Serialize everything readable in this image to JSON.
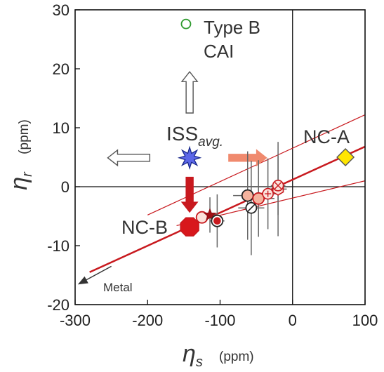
{
  "chart_data": {
    "type": "scatter",
    "title": "",
    "xlabel": "η",
    "xlabel_sub": "s",
    "xlabel_unit": "(ppm)",
    "ylabel": "η",
    "ylabel_sub": "r",
    "ylabel_unit": "(ppm)",
    "xlim": [
      -300,
      100
    ],
    "ylim": [
      -20,
      30
    ],
    "xticks": [
      -300,
      -200,
      -100,
      0,
      100
    ],
    "xtick_labels": [
      "-300",
      "-200",
      "-100",
      "0",
      "100"
    ],
    "yticks": [
      -20,
      -10,
      0,
      10,
      20,
      30
    ],
    "ytick_labels": [
      "-20",
      "-10",
      "0",
      "10",
      "20",
      "30"
    ],
    "grid": false,
    "zero_lines": true,
    "regression_lines": [
      {
        "name": "fit",
        "x": [
          -280,
          100
        ],
        "y": [
          -14.5,
          6.8
        ],
        "color": "#c8191e",
        "width": 2.5
      },
      {
        "name": "upper",
        "x": [
          -200,
          100
        ],
        "y": [
          -4.8,
          12.2
        ],
        "color": "#c8191e",
        "width": 1.2
      },
      {
        "name": "lower",
        "x": [
          -160,
          100
        ],
        "y": [
          -6.6,
          1.0
        ],
        "color": "#c8191e",
        "width": 1.2
      }
    ],
    "points": [
      {
        "id": "nc-b",
        "x": -142,
        "y": -6.8,
        "marker": "octagon",
        "fill": "#d8171c",
        "stroke": "#c8191e",
        "xerr": 0,
        "yerr": 0
      },
      {
        "id": "p2",
        "x": -125,
        "y": -5.2,
        "marker": "circle",
        "fill": "#fbe3dc",
        "stroke": "#c8191e",
        "xerr": 0,
        "yerr": 0
      },
      {
        "id": "p3",
        "x": -114,
        "y": -4.8,
        "marker": "star",
        "fill": "#a11016",
        "stroke": "#8a0d12",
        "xerr": 8,
        "yerr": 3
      },
      {
        "id": "p4",
        "x": -104,
        "y": -5.8,
        "marker": "double-circle",
        "fill": "#c8191e",
        "stroke": "#222222",
        "xerr": 10,
        "yerr": 4.5
      },
      {
        "id": "p5",
        "x": -62,
        "y": -1.5,
        "marker": "circle",
        "fill": "#f4b39e",
        "stroke": "#222222",
        "xerr": 20,
        "yerr": 7.5
      },
      {
        "id": "p6",
        "x": -57,
        "y": -3.6,
        "marker": "slash-circle",
        "fill": "#ffffff",
        "stroke": "#222222",
        "xerr": 18,
        "yerr": 8
      },
      {
        "id": "p7",
        "x": -47,
        "y": -2.0,
        "marker": "circle",
        "fill": "#f4b39e",
        "stroke": "#c8191e",
        "xerr": 22,
        "yerr": 6.5
      },
      {
        "id": "p8",
        "x": -34,
        "y": -1.2,
        "marker": "plus-circle",
        "fill": "#fbe3dc",
        "stroke": "#c8191e",
        "xerr": 15,
        "yerr": 6
      },
      {
        "id": "p9",
        "x": -20,
        "y": -0.4,
        "marker": "hexagon",
        "fill": "#fbe3dc",
        "stroke": "#c8191e",
        "xerr": 12,
        "yerr": 8
      },
      {
        "id": "p10",
        "x": -20,
        "y": 0.2,
        "marker": "x-circle",
        "fill": "#fbe3dc",
        "stroke": "#c8191e",
        "xerr": 10,
        "yerr": 5
      },
      {
        "id": "iss",
        "x": -142,
        "y": 4.9,
        "marker": "star8",
        "fill": "#5b66e8",
        "stroke": "#1a2a8c",
        "xerr": 0,
        "yerr": 0
      },
      {
        "id": "nc-a",
        "x": 73,
        "y": 5.0,
        "marker": "diamond",
        "fill": "#ffe600",
        "stroke": "#555555",
        "xerr": 0,
        "yerr": 0
      },
      {
        "id": "cai",
        "x": -147,
        "y": 27.6,
        "marker": "circle-open",
        "fill": "none",
        "stroke": "#2e9a2e",
        "xerr": 0,
        "yerr": 0
      }
    ],
    "annotations": {
      "nc_a": "NC-A",
      "nc_b": "NC-B",
      "iss_main": "ISS",
      "iss_sub": "avg.",
      "legend_line1": "Type B",
      "legend_line2": "CAI",
      "metal": "Metal"
    },
    "arrows": [
      {
        "id": "up",
        "from": [
          -142,
          12.5
        ],
        "to": [
          -142,
          19.5
        ],
        "style": "outline",
        "color": "#555555"
      },
      {
        "id": "left",
        "from": [
          -197,
          4.9
        ],
        "to": [
          -255,
          4.9
        ],
        "style": "outline",
        "color": "#555555"
      },
      {
        "id": "right",
        "from": [
          -88,
          4.9
        ],
        "to": [
          -36,
          4.9
        ],
        "style": "filled",
        "color": "#f08a6e"
      },
      {
        "id": "down",
        "from": [
          -142,
          1.6
        ],
        "to": [
          -142,
          -4.3
        ],
        "style": "filled",
        "color": "#c8191e"
      },
      {
        "id": "metal",
        "from": [
          -250,
          -13.5
        ],
        "to": [
          -295,
          -16.5
        ],
        "style": "line",
        "color": "#333333"
      }
    ]
  }
}
